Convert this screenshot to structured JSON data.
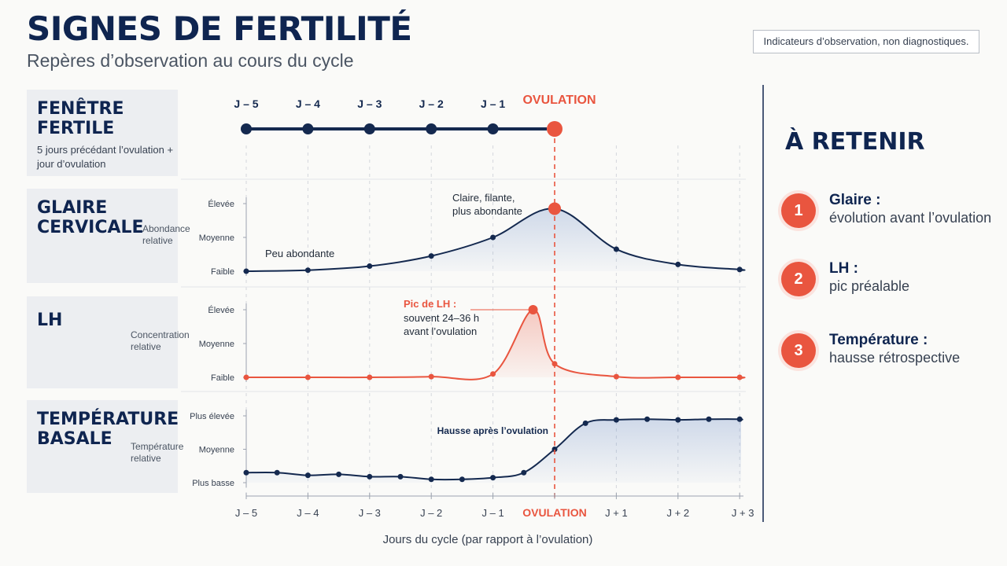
{
  "title": "SIGNES DE FERTILITÉ",
  "subtitle": "Repères d’observation au cours du cycle",
  "disclaimer": "Indicateurs d’observation, non diagnostiques.",
  "panels": {
    "fertile": {
      "title": "FENÊTRE FERTILE",
      "desc": "5 jours précédant l’ovulation + jour d’ovulation"
    },
    "glaire": {
      "title": "GLAIRE CERVICALE",
      "row_label": "Abondance relative"
    },
    "lh": {
      "title": "LH",
      "row_label": "Concentration relative"
    },
    "temp": {
      "title": "TEMPÉRATURE BASALE",
      "row_label": "Température relative"
    }
  },
  "retenir": {
    "title": "À RETENIR",
    "items": [
      {
        "num": "1",
        "head": "Glaire :",
        "text": "évolution avant l’ovulation"
      },
      {
        "num": "2",
        "head": "LH :",
        "text": "pic préalable"
      },
      {
        "num": "3",
        "head": "Température :",
        "text": "hausse rétrospective"
      }
    ]
  },
  "colors": {
    "navy": "#14294f",
    "red": "#e9553f"
  },
  "chart_data": [
    {
      "type": "line",
      "name": "fenetre-fertile",
      "x": [
        "J – 5",
        "J – 4",
        "J – 3",
        "J – 2",
        "J – 1",
        "OVULATION"
      ],
      "marker_labels": [
        "J – 5",
        "J – 4",
        "J – 3",
        "J – 2",
        "J – 1"
      ],
      "ovulation_label": "OVULATION"
    },
    {
      "type": "line",
      "name": "glaire-cervicale",
      "ylabels": [
        "Faible",
        "Moyenne",
        "Élevée"
      ],
      "ylim": [
        0,
        2
      ],
      "x": [
        -5,
        -4,
        -3,
        -2,
        -1,
        0,
        1,
        2,
        3
      ],
      "y": [
        0.0,
        0.03,
        0.15,
        0.45,
        1.0,
        1.85,
        0.65,
        0.2,
        0.05
      ],
      "peak_index": 5,
      "annotations": {
        "low": "Peu abondante",
        "peak": "Claire, filante, plus abondante"
      }
    },
    {
      "type": "line",
      "name": "lh",
      "ylabels": [
        "Faible",
        "Moyenne",
        "Élevée"
      ],
      "ylim": [
        0,
        2
      ],
      "x": [
        -5,
        -4,
        -3,
        -2,
        -1,
        -0.35,
        0,
        1,
        2,
        3
      ],
      "y": [
        0.0,
        0.0,
        0.0,
        0.02,
        0.1,
        2.0,
        0.4,
        0.02,
        0.0,
        0.0
      ],
      "marker_indices": [
        0,
        1,
        2,
        3,
        4,
        6,
        7,
        8,
        9
      ],
      "peak_index": 5,
      "annotation": {
        "title": "Pic de LH :",
        "text": [
          "souvent 24–36 h",
          "avant l’ovulation"
        ]
      }
    },
    {
      "type": "area",
      "name": "temperature-basale",
      "ylabels": [
        "Plus basse",
        "Moyenne",
        "Plus élevée"
      ],
      "ylim": [
        0,
        2
      ],
      "x": [
        -5,
        -4.5,
        -4,
        -3.5,
        -3,
        -2.5,
        -2,
        -1.5,
        -1,
        -0.5,
        0,
        0.5,
        1,
        1.5,
        2,
        2.5,
        3
      ],
      "y": [
        0.3,
        0.3,
        0.22,
        0.25,
        0.18,
        0.18,
        0.1,
        0.1,
        0.15,
        0.3,
        1.0,
        1.78,
        1.88,
        1.9,
        1.88,
        1.9,
        1.9
      ],
      "annotation": "Hausse après l’ovulation"
    }
  ],
  "xaxis": {
    "ticks": [
      "J – 5",
      "J – 4",
      "J – 3",
      "J – 2",
      "J – 1",
      "OVULATION",
      "J + 1",
      "J + 2",
      "J + 3"
    ],
    "title": "Jours du cycle (par rapport à l’ovulation)"
  }
}
